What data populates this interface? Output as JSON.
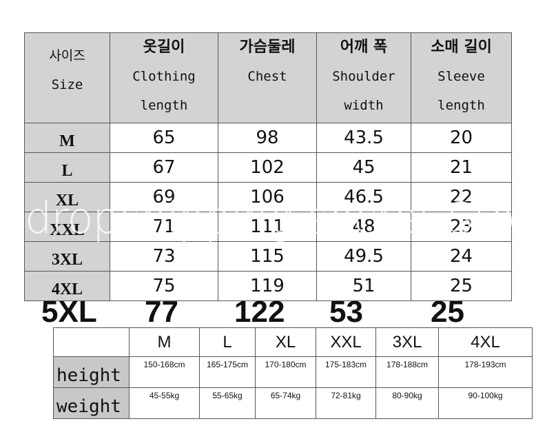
{
  "main_table": {
    "header": [
      {
        "ko": "사이즈",
        "en": [
          "Size"
        ]
      },
      {
        "ko": "옷길이",
        "en": [
          "Clothing",
          "length"
        ]
      },
      {
        "ko": "가슴둘레",
        "en": [
          "Chest",
          ""
        ]
      },
      {
        "ko": "어깨 폭",
        "en": [
          "Shoulder",
          "width"
        ]
      },
      {
        "ko": "소매 길이",
        "en": [
          "Sleeve",
          "length"
        ]
      }
    ],
    "rows": [
      [
        "M",
        "65",
        "98",
        "43.5",
        "20"
      ],
      [
        "L",
        "67",
        "102",
        "45",
        "21"
      ],
      [
        "XL",
        "69",
        "106",
        "46.5",
        "22"
      ],
      [
        "XXL",
        "71",
        "111",
        "48",
        "23"
      ],
      [
        "3XL",
        "73",
        "115",
        "49.5",
        "24"
      ],
      [
        "4XL",
        "75",
        "119",
        "51",
        "25"
      ]
    ],
    "extra_row": [
      "5XL",
      "77",
      "122",
      "53",
      "25"
    ]
  },
  "fit_table": {
    "sizes": [
      "M",
      "L",
      "XL",
      "XXL",
      "3XL",
      "4XL"
    ],
    "rows": [
      {
        "label": "height",
        "values": [
          "150-168cm",
          "165-175cm",
          "170-180cm",
          "175-183cm",
          "178-188cm",
          "178-193cm"
        ]
      },
      {
        "label": "weight",
        "values": [
          "45-55kg",
          "55-65kg",
          "65-74kg",
          "72-81kg",
          "80-90kg",
          "90-100kg"
        ]
      }
    ]
  },
  "watermark": "dropshipping secret Store"
}
